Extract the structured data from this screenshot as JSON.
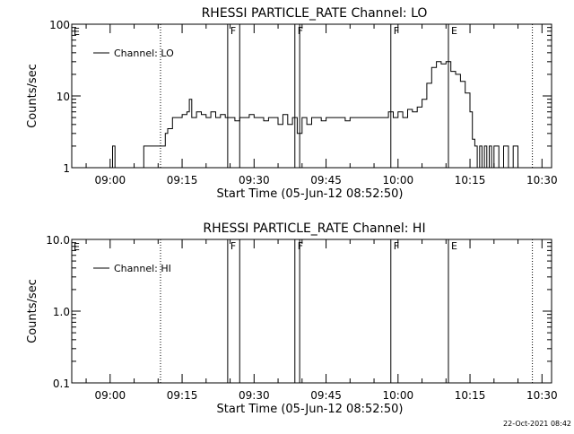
{
  "chart_data": [
    {
      "type": "line",
      "title": "RHESSI PARTICLE_RATE Channel: LO",
      "xlabel": "Start Time (05-Jun-12 08:52:50)",
      "ylabel": "Counts/sec",
      "y_scale": "log",
      "ylim": [
        1,
        100
      ],
      "yticks": [
        1,
        10,
        100
      ],
      "ytick_labels": [
        "1",
        "10",
        "100"
      ],
      "xlim_minutes": [
        "08:52",
        "10:32"
      ],
      "xtick_labels": [
        "09:00",
        "09:15",
        "09:30",
        "09:45",
        "10:00",
        "10:15",
        "10:30"
      ],
      "legend": "Channel: LO",
      "legend_position": "top-left",
      "grid": false,
      "solid_markers": [
        {
          "time": "09:24.5",
          "label": "F"
        },
        {
          "time": "09:27.0",
          "label": ""
        },
        {
          "time": "09:38.5",
          "label": "F"
        },
        {
          "time": "09:39.5",
          "label": ""
        },
        {
          "time": "09:58.5",
          "label": "F"
        },
        {
          "time": "10:10.5",
          "label": "E"
        }
      ],
      "dotted_markers": [
        {
          "time": "09:10.5",
          "label": ""
        },
        {
          "time": "10:28.0",
          "label": ""
        }
      ],
      "corner_label": "E",
      "series": [
        {
          "name": "Channel: LO",
          "x": [
            "09:00",
            "09:00.5",
            "09:01",
            "09:07",
            "09:11",
            "09:11.5",
            "09:12",
            "09:13",
            "09:14",
            "09:15",
            "09:16",
            "09:16.5",
            "09:17",
            "09:18",
            "09:19",
            "09:20",
            "09:21",
            "09:22",
            "09:23",
            "09:24",
            "09:25",
            "09:26",
            "09:27",
            "09:28",
            "09:29",
            "09:30",
            "09:31",
            "09:32",
            "09:33",
            "09:34",
            "09:35",
            "09:36",
            "09:37",
            "09:38",
            "09:39",
            "09:40",
            "09:41",
            "09:42",
            "09:43",
            "09:44",
            "09:45",
            "09:46",
            "09:47",
            "09:48",
            "09:49",
            "09:50",
            "09:51",
            "09:52",
            "09:53",
            "09:54",
            "09:55",
            "09:56",
            "09:57",
            "09:58",
            "09:59",
            "10:00",
            "10:01",
            "10:02",
            "10:03",
            "10:04",
            "10:05",
            "10:06",
            "10:07",
            "10:08",
            "10:09",
            "10:10",
            "10:11",
            "10:12",
            "10:13",
            "10:14",
            "10:15",
            "10:15.5",
            "10:16",
            "10:16.5",
            "10:17",
            "10:17.5",
            "10:18",
            "10:18.5",
            "10:19",
            "10:19.5",
            "10:20",
            "10:21",
            "10:22",
            "10:23",
            "10:24",
            "10:25"
          ],
          "y": [
            1,
            2,
            1,
            2,
            2,
            3,
            3.5,
            5,
            5,
            5.5,
            6,
            9,
            5,
            6,
            5.5,
            5,
            6,
            5,
            5.5,
            5,
            5,
            4.5,
            5,
            5,
            5.5,
            5,
            5,
            4.5,
            5,
            5,
            4,
            5.5,
            4,
            5,
            3,
            5,
            4,
            5,
            5,
            4.5,
            5,
            5,
            5,
            5,
            4.5,
            5,
            5,
            5,
            5,
            5,
            5,
            5,
            5,
            6,
            5,
            6,
            5,
            6.5,
            6,
            7,
            9,
            15,
            25,
            30,
            28,
            30,
            22,
            20,
            16,
            11,
            6,
            2.5,
            2,
            1,
            2,
            1,
            2,
            1,
            2,
            1,
            2,
            1,
            2,
            1,
            2,
            1
          ]
        }
      ]
    },
    {
      "type": "line",
      "title": "RHESSI PARTICLE_RATE Channel: HI",
      "xlabel": "Start Time (05-Jun-12 08:52:50)",
      "ylabel": "Counts/sec",
      "y_scale": "log",
      "ylim": [
        0.1,
        10
      ],
      "yticks": [
        0.1,
        1,
        10
      ],
      "ytick_labels": [
        "0.1",
        "1.0",
        "10.0"
      ],
      "xlim_minutes": [
        "08:52",
        "10:32"
      ],
      "xtick_labels": [
        "09:00",
        "09:15",
        "09:30",
        "09:45",
        "10:00",
        "10:15",
        "10:30"
      ],
      "legend": "Channel: HI",
      "legend_position": "top-left",
      "grid": false,
      "solid_markers": [
        {
          "time": "09:24.5",
          "label": "F"
        },
        {
          "time": "09:27.0",
          "label": ""
        },
        {
          "time": "09:38.5",
          "label": "F"
        },
        {
          "time": "09:39.5",
          "label": ""
        },
        {
          "time": "09:58.5",
          "label": "F"
        },
        {
          "time": "10:10.5",
          "label": "E"
        }
      ],
      "dotted_markers": [
        {
          "time": "09:10.5",
          "label": ""
        },
        {
          "time": "10:28.0",
          "label": ""
        }
      ],
      "corner_label": "E",
      "series": [
        {
          "name": "Channel: HI",
          "x": [],
          "y": []
        }
      ]
    }
  ],
  "footer": {
    "timestamp": "22-Oct-2021 08:42"
  }
}
